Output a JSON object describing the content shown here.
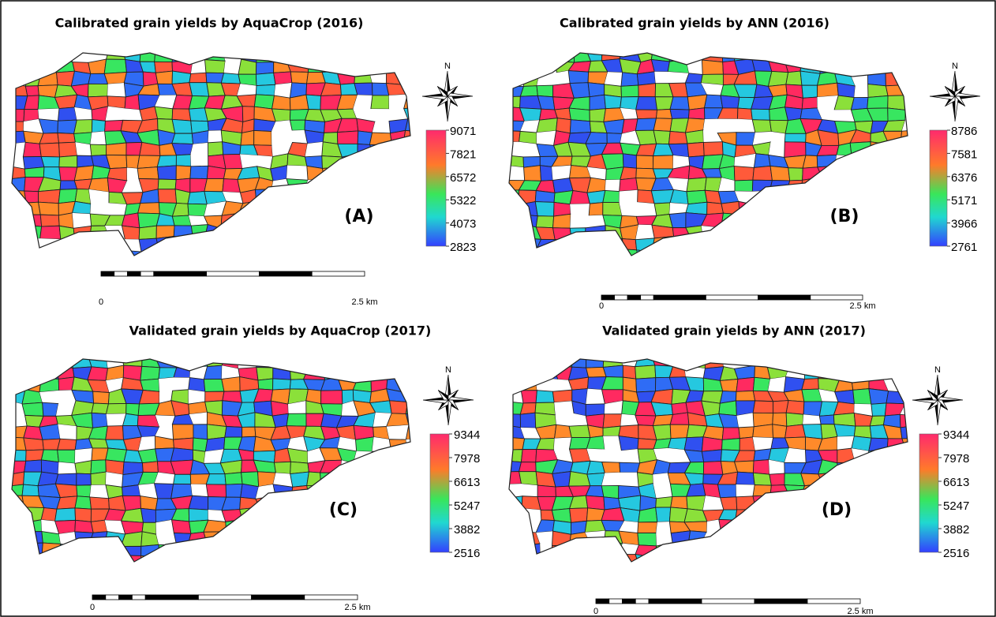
{
  "panels": [
    {
      "title": "Calibrated grain yields by AquaCrop (2016)",
      "label": "(A)",
      "north": "N",
      "legend_ticks": [
        9071,
        7821,
        6572,
        5322,
        4073,
        2823
      ],
      "scale_labels": [
        "0",
        "2.5 km"
      ]
    },
    {
      "title": "Calibrated grain yields by ANN (2016)",
      "label": "(B)",
      "north": "N",
      "legend_ticks": [
        8786,
        7581,
        6376,
        5171,
        3966,
        2761
      ],
      "scale_labels": [
        "0",
        "2.5 km"
      ]
    },
    {
      "title": "Validated grain yields by AquaCrop (2017)",
      "label": "(C)",
      "north": "N",
      "legend_ticks": [
        9344,
        7978,
        6613,
        5247,
        3882,
        2516
      ],
      "scale_labels": [
        "0",
        "2.5 km"
      ]
    },
    {
      "title": "Validated grain yields by ANN (2017)",
      "label": "(D)",
      "north": "N",
      "legend_ticks": [
        9344,
        7978,
        6613,
        5247,
        3882,
        2516
      ],
      "scale_labels": [
        "0",
        "2.5 km"
      ]
    }
  ]
}
